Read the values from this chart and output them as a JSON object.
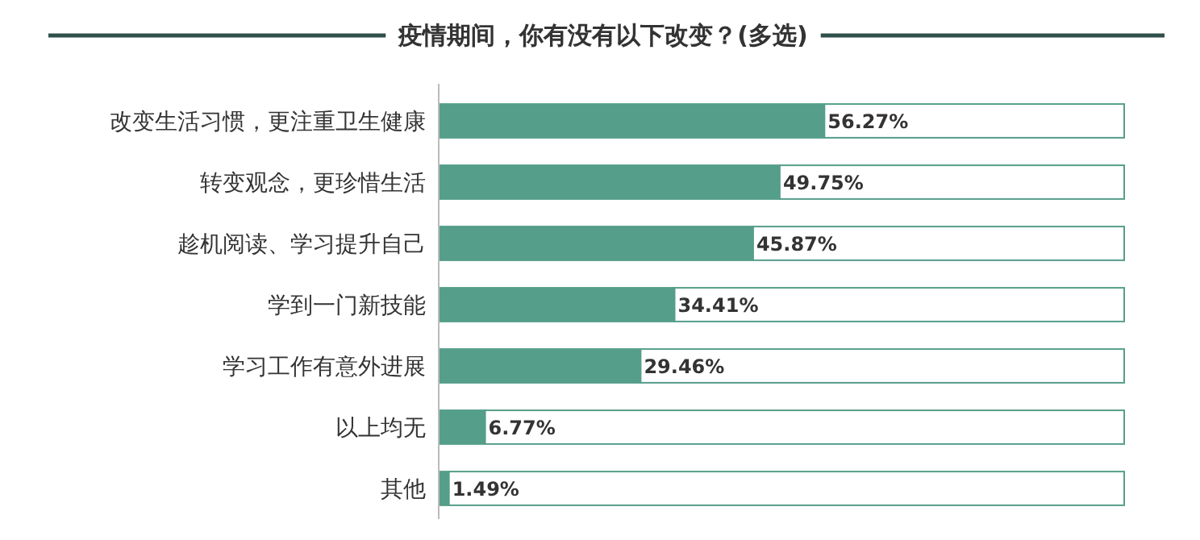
{
  "chart_data": {
    "type": "bar",
    "orientation": "horizontal",
    "stacked": true,
    "title": "疫情期间，你有没有以下改变？(多选)",
    "categories": [
      "改变生活习惯，更注重卫生健康",
      "转变观念，更珍惜生活",
      "趁机阅读、学习提升自己",
      "学到一门新技能",
      "学习工作有意外进展",
      "以上均无",
      "其他"
    ],
    "xlim": [
      0,
      100
    ],
    "tick_labels": "y",
    "series": [
      {
        "color": "#559e8a",
        "values": [
          56.27,
          49.75,
          45.87,
          34.41,
          29.46,
          6.77,
          1.49
        ],
        "value_labels": [
          "56.27%",
          "49.75%",
          "45.87%",
          "34.41%",
          "29.46%",
          "6.77%",
          "1.49%"
        ]
      },
      {
        "color": "#ffffff",
        "values": [
          43.73,
          50.25,
          54.13,
          65.59,
          70.54,
          93.23,
          98.51
        ]
      }
    ]
  }
}
